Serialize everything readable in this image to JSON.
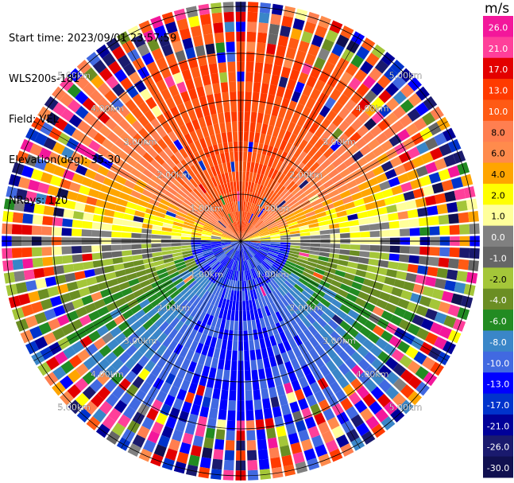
{
  "header": {
    "start_time": "Start time: 2023/09/01 23:57:59",
    "instrument": "WLS200s-181",
    "field": "Field: VEL",
    "elevation": "Elevation(deg): 35.30",
    "nrays": "NRays: 120"
  },
  "chart_data": {
    "type": "ppi",
    "field": "VEL",
    "units": "m/s",
    "elevation_deg": 35.3,
    "n_rays": 120,
    "range_rings_km": [
      1,
      2,
      3,
      4,
      5
    ],
    "ring_labels": [
      "1.00km",
      "2.00km",
      "3.00km",
      "4.00km",
      "5.00km"
    ],
    "max_range_km": 5.1,
    "spokes_deg": [
      0,
      30,
      60,
      90,
      120,
      150,
      180,
      210,
      240,
      270,
      300,
      330
    ],
    "colorbar": {
      "title": "m/s",
      "ticks": [
        "26.0",
        "21.0",
        "17.0",
        "13.0",
        "10.0",
        "8.0",
        "6.0",
        "4.0",
        "2.0",
        "1.0",
        "0.0",
        "-1.0",
        "-2.0",
        "-4.0",
        "-6.0",
        "-8.0",
        "-10.0",
        "-13.0",
        "-17.0",
        "-21.0",
        "-26.0",
        "-30.0"
      ],
      "colors": [
        "#f3179b",
        "#ff3f9a",
        "#e30000",
        "#ff3a00",
        "#ff5a14",
        "#ff7f50",
        "#ff8b4c",
        "#ffa500",
        "#ffff00",
        "#ffff9b",
        "#808080",
        "#666666",
        "#a4c639",
        "#6b8e23",
        "#228b22",
        "#3a86c8",
        "#4169e1",
        "#0000ff",
        "#0033cc",
        "#000099",
        "#1a1a6e",
        "#101050"
      ]
    },
    "pattern": "velocity dipole: positive (away, warm colors) toward north, negative (toward, cool colors) toward south; noisy speckle beyond ~3.5 km"
  }
}
